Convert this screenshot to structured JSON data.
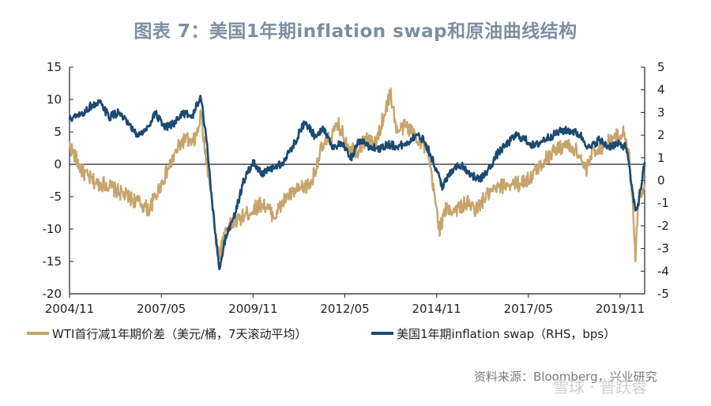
{
  "title": "图表 7：美国1年期inflation swap和原油曲线结构",
  "source": "资料来源：Bloomberg，兴业研究",
  "watermark": "雪球 · 普跃蓉",
  "colors": {
    "series1": "#c7a46c",
    "series2": "#1b4a72",
    "title": "#7d8ea2"
  },
  "chart_data": {
    "type": "line",
    "x_tick_labels": [
      "2004/11",
      "2007/05",
      "2009/11",
      "2012/05",
      "2014/11",
      "2017/05",
      "2019/11"
    ],
    "x_range": [
      "2004-11",
      "2020-07"
    ],
    "y_left": {
      "ticks": [
        15,
        10,
        5,
        0,
        -5,
        -10,
        -15,
        -20
      ],
      "range": [
        -20,
        15
      ]
    },
    "y_right": {
      "ticks": [
        5,
        4,
        3,
        2,
        1,
        0,
        -1,
        -2,
        -3,
        -4,
        -5
      ],
      "range": [
        -5,
        5
      ]
    },
    "legend_position": "bottom",
    "series": [
      {
        "name": "WTI首行减1年期价差（美元/桶，7天滚动平均）",
        "axis": "left",
        "color": "#c7a46c",
        "points": [
          [
            "2004-11",
            3
          ],
          [
            "2005-01",
            1
          ],
          [
            "2005-03",
            -1
          ],
          [
            "2005-05",
            -2
          ],
          [
            "2005-08",
            -3
          ],
          [
            "2005-11",
            -3
          ],
          [
            "2006-02",
            -4
          ],
          [
            "2006-06",
            -5
          ],
          [
            "2006-10",
            -6
          ],
          [
            "2007-01",
            -7
          ],
          [
            "2007-03",
            -5
          ],
          [
            "2007-06",
            -2
          ],
          [
            "2007-09",
            1
          ],
          [
            "2007-11",
            3
          ],
          [
            "2008-01",
            4
          ],
          [
            "2008-03",
            3
          ],
          [
            "2008-05",
            5
          ],
          [
            "2008-06",
            8
          ],
          [
            "2008-07",
            3
          ],
          [
            "2008-09",
            -3
          ],
          [
            "2008-11",
            -12
          ],
          [
            "2008-12",
            -14
          ],
          [
            "2009-02",
            -10
          ],
          [
            "2009-05",
            -9
          ],
          [
            "2009-08",
            -8
          ],
          [
            "2009-11",
            -7
          ],
          [
            "2010-02",
            -6
          ],
          [
            "2010-06",
            -8
          ],
          [
            "2010-10",
            -5
          ],
          [
            "2011-02",
            -4
          ],
          [
            "2011-06",
            -3
          ],
          [
            "2011-09",
            2
          ],
          [
            "2011-12",
            4
          ],
          [
            "2012-03",
            6
          ],
          [
            "2012-06",
            3
          ],
          [
            "2012-09",
            2
          ],
          [
            "2012-12",
            4
          ],
          [
            "2013-03",
            3
          ],
          [
            "2013-06",
            8
          ],
          [
            "2013-08",
            11
          ],
          [
            "2013-10",
            5
          ],
          [
            "2014-01",
            6
          ],
          [
            "2014-05",
            4
          ],
          [
            "2014-08",
            2
          ],
          [
            "2014-10",
            -4
          ],
          [
            "2014-12",
            -10
          ],
          [
            "2015-02",
            -7
          ],
          [
            "2015-05",
            -7
          ],
          [
            "2015-09",
            -6
          ],
          [
            "2015-12",
            -7
          ],
          [
            "2016-03",
            -5
          ],
          [
            "2016-06",
            -4
          ],
          [
            "2016-10",
            -3
          ],
          [
            "2017-02",
            -3
          ],
          [
            "2017-06",
            -2
          ],
          [
            "2017-09",
            0
          ],
          [
            "2018-01",
            2
          ],
          [
            "2018-05",
            3
          ],
          [
            "2018-09",
            2
          ],
          [
            "2018-12",
            -1
          ],
          [
            "2019-02",
            2
          ],
          [
            "2019-06",
            3
          ],
          [
            "2019-09",
            4
          ],
          [
            "2019-12",
            5
          ],
          [
            "2020-02",
            1
          ],
          [
            "2020-03",
            -5
          ],
          [
            "2020-04",
            -14
          ],
          [
            "2020-05",
            -5
          ],
          [
            "2020-07",
            -3
          ]
        ]
      },
      {
        "name": "美国1年期inflation swap（RHS，bps）",
        "axis": "right",
        "color": "#1b4a72",
        "points": [
          [
            "2004-11",
            2.7
          ],
          [
            "2005-03",
            2.9
          ],
          [
            "2005-06",
            3.3
          ],
          [
            "2005-09",
            3.4
          ],
          [
            "2005-12",
            2.8
          ],
          [
            "2006-03",
            3.0
          ],
          [
            "2006-06",
            2.5
          ],
          [
            "2006-09",
            2.0
          ],
          [
            "2006-12",
            2.2
          ],
          [
            "2007-03",
            3.0
          ],
          [
            "2007-06",
            2.3
          ],
          [
            "2007-09",
            2.5
          ],
          [
            "2007-12",
            3.0
          ],
          [
            "2008-03",
            2.8
          ],
          [
            "2008-06",
            3.7
          ],
          [
            "2008-08",
            1.5
          ],
          [
            "2008-10",
            -1.5
          ],
          [
            "2008-12",
            -4.0
          ],
          [
            "2009-02",
            -2.5
          ],
          [
            "2009-05",
            -1.5
          ],
          [
            "2009-08",
            0.0
          ],
          [
            "2009-11",
            0.8
          ],
          [
            "2010-02",
            0.3
          ],
          [
            "2010-05",
            0.5
          ],
          [
            "2010-09",
            0.8
          ],
          [
            "2011-01",
            1.8
          ],
          [
            "2011-04",
            2.6
          ],
          [
            "2011-07",
            2.0
          ],
          [
            "2011-10",
            2.3
          ],
          [
            "2012-01",
            1.5
          ],
          [
            "2012-04",
            1.6
          ],
          [
            "2012-07",
            1.0
          ],
          [
            "2012-10",
            1.8
          ],
          [
            "2013-01",
            1.5
          ],
          [
            "2013-04",
            1.4
          ],
          [
            "2013-07",
            1.6
          ],
          [
            "2013-10",
            1.5
          ],
          [
            "2014-01",
            1.6
          ],
          [
            "2014-04",
            2.0
          ],
          [
            "2014-07",
            1.8
          ],
          [
            "2014-10",
            0.8
          ],
          [
            "2015-01",
            -0.3
          ],
          [
            "2015-04",
            0.5
          ],
          [
            "2015-07",
            0.7
          ],
          [
            "2015-10",
            0.3
          ],
          [
            "2016-01",
            0.0
          ],
          [
            "2016-04",
            0.5
          ],
          [
            "2016-07",
            1.2
          ],
          [
            "2016-10",
            1.6
          ],
          [
            "2017-01",
            2.0
          ],
          [
            "2017-04",
            1.8
          ],
          [
            "2017-07",
            1.5
          ],
          [
            "2017-10",
            1.8
          ],
          [
            "2018-01",
            2.0
          ],
          [
            "2018-04",
            2.2
          ],
          [
            "2018-07",
            2.2
          ],
          [
            "2018-10",
            2.0
          ],
          [
            "2019-01",
            1.4
          ],
          [
            "2019-04",
            1.8
          ],
          [
            "2019-07",
            1.5
          ],
          [
            "2019-10",
            1.6
          ],
          [
            "2020-01",
            1.5
          ],
          [
            "2020-03",
            -0.5
          ],
          [
            "2020-04",
            -1.3
          ],
          [
            "2020-05",
            -1.0
          ],
          [
            "2020-07",
            0.8
          ]
        ]
      }
    ]
  }
}
